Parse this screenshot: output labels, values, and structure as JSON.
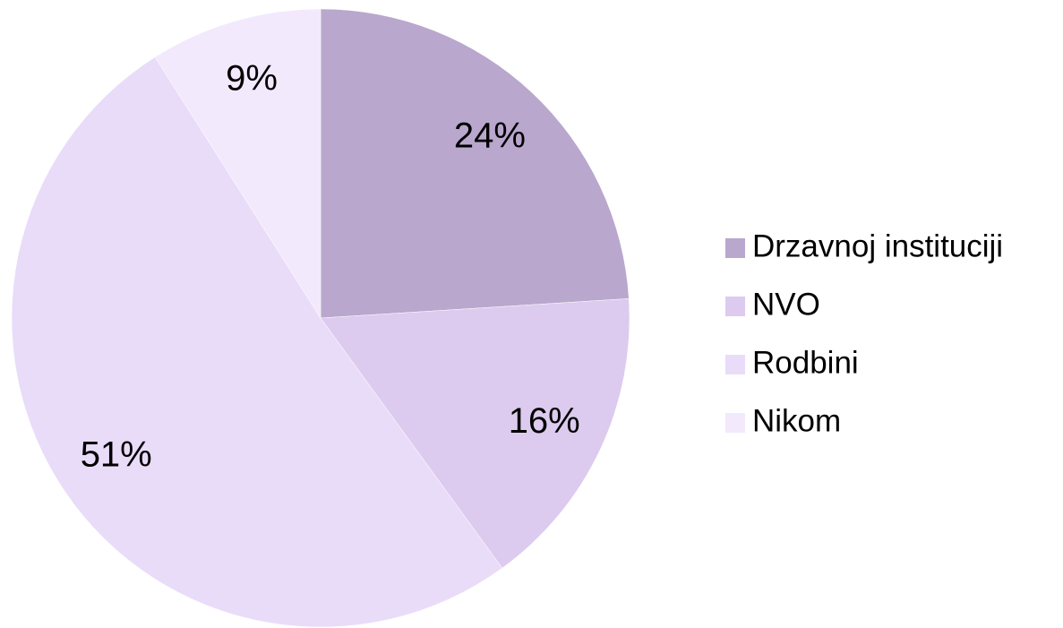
{
  "chart_data": {
    "type": "pie",
    "categories": [
      "Drzavnoj instituciji",
      "NVO",
      "Rodbini",
      "Nikom"
    ],
    "values": [
      24,
      16,
      51,
      9
    ],
    "value_labels": [
      "24%",
      "16%",
      "51%",
      "9%"
    ],
    "colors": [
      "#b9a7cd",
      "#dccbee",
      "#e9dcf9",
      "#f2e9fc"
    ],
    "legend": "right"
  }
}
